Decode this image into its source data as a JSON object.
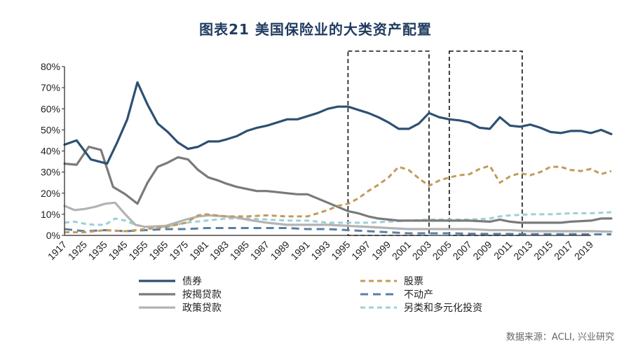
{
  "title": "图表21  美国保险业的大类资产配置",
  "source": "数据来源：ACLI, 兴业研究",
  "chart_data": {
    "type": "line",
    "x_ticks": [
      "1917",
      "1925",
      "1935",
      "1945",
      "1955",
      "1965",
      "1975",
      "1981",
      "1983",
      "1985",
      "1987",
      "1989",
      "1991",
      "1993",
      "1995",
      "1997",
      "1999",
      "2001",
      "2003",
      "2005",
      "2007",
      "2009",
      "2011",
      "2013",
      "2015",
      "2017",
      "2019"
    ],
    "y_ticks": [
      "0%",
      "10%",
      "20%",
      "30%",
      "40%",
      "50%",
      "60%",
      "70%",
      "80%"
    ],
    "ylim": [
      0,
      80
    ],
    "highlight_ranges": [
      [
        14,
        18
      ],
      [
        19,
        22.6
      ]
    ],
    "legend_layout": "bottom, 3 rows x 2 columns",
    "series": [
      {
        "name": "债券",
        "color": "#2e5073",
        "dash": "solid",
        "width": 3.2,
        "points": [
          [
            0,
            43
          ],
          [
            0.6,
            45
          ],
          [
            1.3,
            36
          ],
          [
            2.1,
            34
          ],
          [
            2.6,
            44
          ],
          [
            3.1,
            55
          ],
          [
            3.6,
            72.5
          ],
          [
            4.1,
            62
          ],
          [
            4.6,
            53
          ],
          [
            5.1,
            49
          ],
          [
            5.6,
            44
          ],
          [
            6.1,
            41
          ],
          [
            6.6,
            42
          ],
          [
            7.1,
            44.5
          ],
          [
            7.6,
            44.5
          ],
          [
            8,
            45.5
          ],
          [
            8.5,
            47
          ],
          [
            9,
            49.5
          ],
          [
            9.5,
            51
          ],
          [
            10,
            52
          ],
          [
            10.5,
            53.5
          ],
          [
            11,
            55
          ],
          [
            11.5,
            55
          ],
          [
            12,
            56.5
          ],
          [
            12.5,
            58
          ],
          [
            13,
            60
          ],
          [
            13.5,
            61
          ],
          [
            14,
            61
          ],
          [
            14.5,
            59.5
          ],
          [
            15,
            58
          ],
          [
            15.5,
            56
          ],
          [
            16,
            53.5
          ],
          [
            16.5,
            50.5
          ],
          [
            17,
            50.5
          ],
          [
            17.5,
            53
          ],
          [
            18,
            58
          ],
          [
            18.5,
            56
          ],
          [
            19,
            55
          ],
          [
            19.5,
            54.5
          ],
          [
            20,
            53.5
          ],
          [
            20.5,
            51
          ],
          [
            21,
            50.5
          ],
          [
            21.5,
            56
          ],
          [
            22,
            52
          ],
          [
            22.5,
            51.5
          ],
          [
            23,
            52.5
          ],
          [
            23.5,
            51
          ],
          [
            24,
            49
          ],
          [
            24.5,
            48.5
          ],
          [
            25,
            49.5
          ],
          [
            25.5,
            49.5
          ],
          [
            26,
            48.5
          ],
          [
            26.5,
            50
          ],
          [
            27,
            48
          ]
        ]
      },
      {
        "name": "股票",
        "color": "#c49a5a",
        "dash": "7,5",
        "width": 3,
        "points": [
          [
            0,
            1.5
          ],
          [
            1,
            1.5
          ],
          [
            2,
            2.5
          ],
          [
            3,
            2
          ],
          [
            4,
            3
          ],
          [
            5,
            4
          ],
          [
            6,
            6
          ],
          [
            6.6,
            9.5
          ],
          [
            7,
            10
          ],
          [
            8,
            9
          ],
          [
            9,
            9
          ],
          [
            10,
            9.5
          ],
          [
            11,
            9
          ],
          [
            12,
            9
          ],
          [
            12.5,
            10.5
          ],
          [
            13,
            12
          ],
          [
            13.5,
            14
          ],
          [
            14,
            15
          ],
          [
            14.5,
            17.5
          ],
          [
            15,
            21
          ],
          [
            15.5,
            24
          ],
          [
            16,
            27.5
          ],
          [
            16.5,
            32.5
          ],
          [
            17,
            31
          ],
          [
            17.5,
            27
          ],
          [
            18,
            23.5
          ],
          [
            18.5,
            26
          ],
          [
            19,
            27.5
          ],
          [
            19.5,
            28.5
          ],
          [
            20,
            29
          ],
          [
            20.5,
            31.5
          ],
          [
            21,
            33
          ],
          [
            21.5,
            25
          ],
          [
            22,
            28
          ],
          [
            22.5,
            29.5
          ],
          [
            23,
            28.5
          ],
          [
            23.5,
            30
          ],
          [
            24,
            32.5
          ],
          [
            24.5,
            32.5
          ],
          [
            25,
            31
          ],
          [
            25.5,
            30.5
          ],
          [
            26,
            31.5
          ],
          [
            26.5,
            29
          ],
          [
            27,
            30.5
          ]
        ]
      },
      {
        "name": "按揭贷款",
        "color": "#7a7a7a",
        "dash": "solid",
        "width": 3.2,
        "points": [
          [
            0,
            34
          ],
          [
            0.6,
            33.5
          ],
          [
            1.2,
            42
          ],
          [
            1.8,
            40.5
          ],
          [
            2.4,
            23
          ],
          [
            3,
            19.5
          ],
          [
            3.6,
            15
          ],
          [
            4.1,
            25
          ],
          [
            4.6,
            32.5
          ],
          [
            5.1,
            34.5
          ],
          [
            5.6,
            37
          ],
          [
            6.1,
            36
          ],
          [
            6.6,
            31
          ],
          [
            7.1,
            27.5
          ],
          [
            7.6,
            26
          ],
          [
            8,
            24.5
          ],
          [
            8.5,
            23
          ],
          [
            9,
            22
          ],
          [
            9.5,
            21
          ],
          [
            10,
            21
          ],
          [
            10.5,
            20.5
          ],
          [
            11,
            20
          ],
          [
            11.5,
            19.5
          ],
          [
            12,
            19.5
          ],
          [
            12.5,
            17.5
          ],
          [
            13,
            15.5
          ],
          [
            13.5,
            13.5
          ],
          [
            14,
            11.5
          ],
          [
            14.5,
            10.5
          ],
          [
            15,
            9
          ],
          [
            15.5,
            8
          ],
          [
            16,
            7.5
          ],
          [
            16.5,
            7
          ],
          [
            17,
            7
          ],
          [
            18,
            7
          ],
          [
            19,
            7
          ],
          [
            20,
            7
          ],
          [
            21,
            6.5
          ],
          [
            21.5,
            7.5
          ],
          [
            22,
            6.5
          ],
          [
            22.5,
            6
          ],
          [
            23,
            6
          ],
          [
            24,
            6
          ],
          [
            24.5,
            6
          ],
          [
            25,
            6.5
          ],
          [
            26,
            7
          ],
          [
            26.5,
            8
          ],
          [
            27,
            8
          ]
        ]
      },
      {
        "name": "不动产",
        "color": "#5a7fa6",
        "dash": "11,7",
        "width": 3,
        "points": [
          [
            0,
            3
          ],
          [
            1,
            2
          ],
          [
            2,
            2.5
          ],
          [
            3,
            2
          ],
          [
            4,
            2.5
          ],
          [
            5,
            3
          ],
          [
            6,
            3
          ],
          [
            7,
            3.5
          ],
          [
            8,
            3.5
          ],
          [
            9,
            3.5
          ],
          [
            10,
            3.5
          ],
          [
            11,
            3.5
          ],
          [
            12,
            3
          ],
          [
            13,
            3
          ],
          [
            14,
            2.5
          ],
          [
            15,
            2
          ],
          [
            16,
            1.5
          ],
          [
            17,
            1
          ],
          [
            18,
            1
          ],
          [
            19,
            1
          ],
          [
            20,
            0.8
          ],
          [
            21,
            0.7
          ],
          [
            22,
            0.7
          ],
          [
            23,
            0.6
          ],
          [
            24,
            0.6
          ],
          [
            25,
            0.6
          ],
          [
            26,
            0.5
          ],
          [
            27,
            0.5
          ]
        ]
      },
      {
        "name": "政策贷款",
        "color": "#b3b3b3",
        "dash": "solid",
        "width": 3.2,
        "points": [
          [
            0,
            14
          ],
          [
            0.5,
            12
          ],
          [
            1,
            12.5
          ],
          [
            1.5,
            13.5
          ],
          [
            2,
            15
          ],
          [
            2.5,
            15.5
          ],
          [
            3,
            10
          ],
          [
            3.5,
            5
          ],
          [
            4,
            4
          ],
          [
            5,
            4.5
          ],
          [
            6,
            7.5
          ],
          [
            6.6,
            9
          ],
          [
            7.1,
            9.5
          ],
          [
            8,
            9
          ],
          [
            8.5,
            8.5
          ],
          [
            9,
            7.5
          ],
          [
            10,
            6
          ],
          [
            11,
            5
          ],
          [
            12,
            5
          ],
          [
            13,
            5
          ],
          [
            14,
            4.5
          ],
          [
            15,
            4
          ],
          [
            16,
            3.5
          ],
          [
            17,
            3
          ],
          [
            18,
            3
          ],
          [
            19,
            3
          ],
          [
            20,
            3
          ],
          [
            21,
            2.5
          ],
          [
            22,
            2.5
          ],
          [
            23,
            2
          ],
          [
            24,
            2
          ],
          [
            25,
            2
          ],
          [
            26,
            2
          ],
          [
            27,
            1.8
          ]
        ]
      },
      {
        "name": "另类和多元化投资",
        "color": "#9fcfd4",
        "dash": "7,5",
        "width": 3,
        "points": [
          [
            0,
            6
          ],
          [
            0.5,
            6.5
          ],
          [
            1,
            5.5
          ],
          [
            1.5,
            5
          ],
          [
            2,
            5
          ],
          [
            2.5,
            8
          ],
          [
            3,
            7
          ],
          [
            3.5,
            5
          ],
          [
            4,
            4
          ],
          [
            5,
            4
          ],
          [
            6,
            6
          ],
          [
            7,
            7
          ],
          [
            8,
            8
          ],
          [
            9,
            8
          ],
          [
            10,
            7.5
          ],
          [
            11,
            7
          ],
          [
            12,
            7
          ],
          [
            13,
            6
          ],
          [
            14,
            6
          ],
          [
            15,
            6
          ],
          [
            16,
            6.5
          ],
          [
            17,
            7
          ],
          [
            18,
            7.5
          ],
          [
            19,
            7.5
          ],
          [
            20,
            7.5
          ],
          [
            21,
            8
          ],
          [
            21.5,
            9
          ],
          [
            22,
            9.5
          ],
          [
            23,
            10
          ],
          [
            24,
            10
          ],
          [
            25,
            10.5
          ],
          [
            26,
            10.5
          ],
          [
            27,
            11
          ]
        ]
      }
    ]
  }
}
